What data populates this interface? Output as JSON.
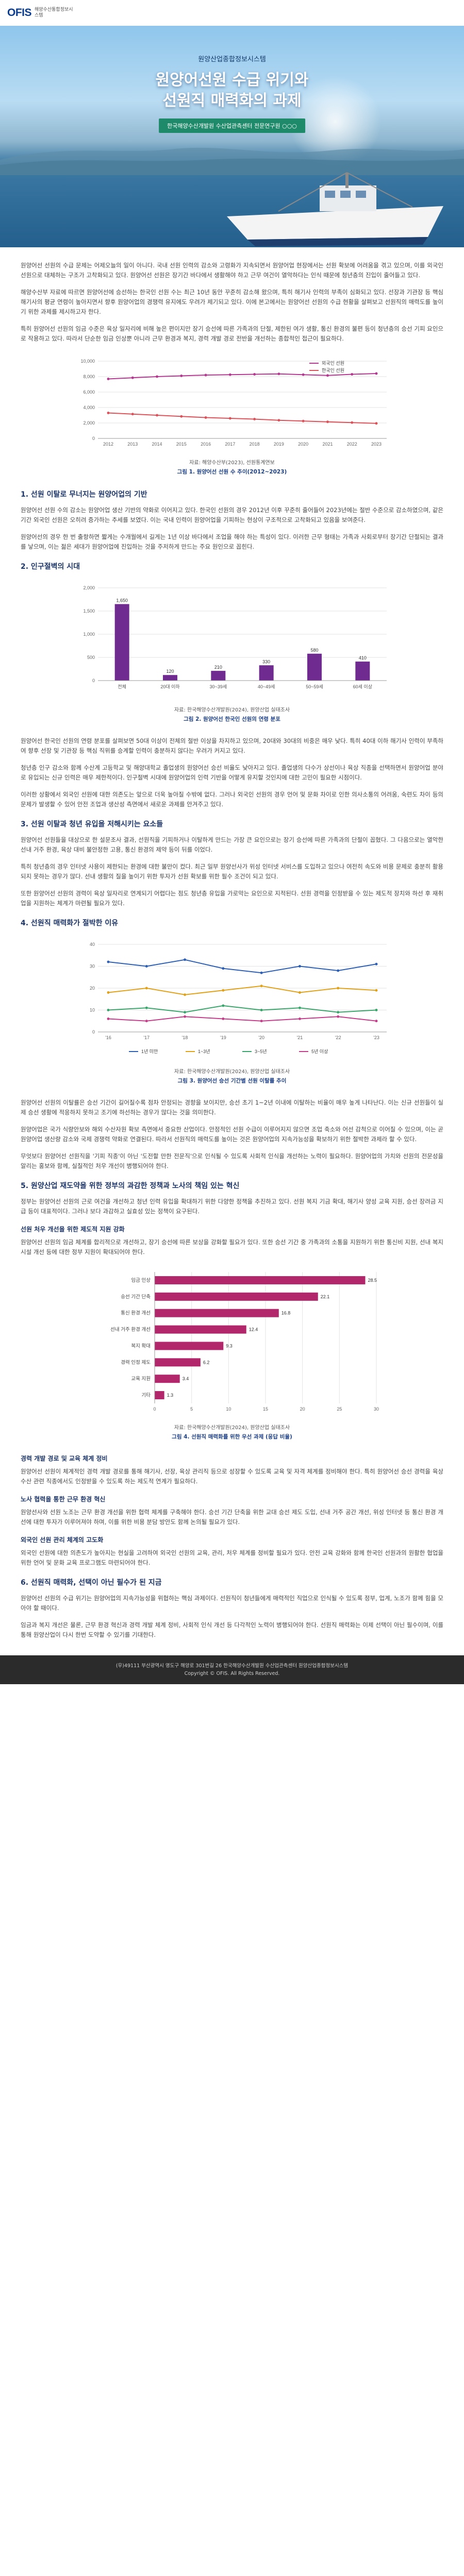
{
  "logo": {
    "mark": "OFIS",
    "subtitle": "해양수산통합정보시스템"
  },
  "hero": {
    "kicker": "원양산업종합정보시스템",
    "title_line1": "원양어선원 수급 위기와",
    "title_line2": "선원직 매력화의 과제",
    "author": "한국해양수산개발원 수산업관측센터 전문연구원 ○○○"
  },
  "intro_paragraphs": [
    "원양어선 선원의 수급 문제는 어제오늘의 일이 아니다. 국내 선원 인력의 감소와 고령화가 지속되면서 원양어업 현장에서는 선원 확보에 어려움을 겪고 있으며, 이를 외국인 선원으로 대체하는 구조가 고착화되고 있다. 원양어선 선원은 장기간 바다에서 생활해야 하고 근무 여건이 열악하다는 인식 때문에 청년층의 진입이 줄어들고 있다.",
    "해양수산부 자료에 따르면 원양어선에 승선하는 한국인 선원 수는 최근 10년 동안 꾸준히 감소해 왔으며, 특히 해기사 인력의 부족이 심화되고 있다. 선장과 기관장 등 핵심 해기사의 평균 연령이 높아지면서 향후 원양어업의 경쟁력 유지에도 우려가 제기되고 있다. 이에 본고에서는 원양어선 선원의 수급 현황을 살펴보고 선원직의 매력도를 높이기 위한 과제를 제시하고자 한다.",
    "특히 원양어선 선원의 임금 수준은 육상 일자리에 비해 높은 편이지만 장기 승선에 따른 가족과의 단절, 제한된 여가 생활, 통신 환경의 불편 등이 청년층의 승선 기피 요인으로 작용하고 있다. 따라서 단순한 임금 인상뿐 아니라 근무 환경과 복지, 경력 개발 경로 전반을 개선하는 종합적인 접근이 필요하다."
  ],
  "figure1": {
    "source": "자료: 해양수산부(2023), 선원통계연보",
    "caption": "그림 1. 원양어선 선원 수 추이(2012~2023)"
  },
  "section1": {
    "heading": "1. 선원 이탈로 무너지는 원양어업의 기반",
    "paragraphs": [
      "원양어선 선원 수의 감소는 원양어업 생산 기반의 약화로 이어지고 있다. 한국인 선원의 경우 2012년 이후 꾸준히 줄어들어 2023년에는 절반 수준으로 감소하였으며, 같은 기간 외국인 선원은 오히려 증가하는 추세를 보였다. 이는 국내 인력이 원양어업을 기피하는 현상이 구조적으로 고착화되고 있음을 보여준다.",
      "원양어선의 경우 한 번 출항하면 짧게는 수개월에서 길게는 1년 이상 바다에서 조업을 해야 하는 특성이 있다. 이러한 근무 형태는 가족과 사회로부터 장기간 단절되는 결과를 낳으며, 이는 젊은 세대가 원양어업에 진입하는 것을 주저하게 만드는 주요 원인으로 꼽힌다."
    ]
  },
  "section2": {
    "heading": "2. 인구절벽의 시대"
  },
  "figure2": {
    "source": "자료: 한국해양수산개발원(2024), 원양산업 실태조사",
    "caption": "그림 2. 원양어선 한국인 선원의 연령 분포"
  },
  "section2_paragraphs": [
    "원양어선 한국인 선원의 연령 분포를 살펴보면 50대 이상이 전체의 절반 이상을 차지하고 있으며, 20대와 30대의 비중은 매우 낮다. 특히 40대 이하 해기사 인력이 부족하여 향후 선장 및 기관장 등 핵심 직위를 승계할 인력이 충분하지 않다는 우려가 커지고 있다.",
    "청년층 인구 감소와 함께 수산계 고등학교 및 해양대학교 졸업생의 원양어선 승선 비율도 낮아지고 있다. 졸업생의 다수가 상선이나 육상 직종을 선택하면서 원양어업 분야로 유입되는 신규 인력은 매우 제한적이다. 인구절벽 시대에 원양어업의 인력 기반을 어떻게 유지할 것인지에 대한 고민이 필요한 시점이다.",
    "이러한 상황에서 외국인 선원에 대한 의존도는 앞으로 더욱 높아질 수밖에 없다. 그러나 외국인 선원의 경우 언어 및 문화 차이로 인한 의사소통의 어려움, 숙련도 차이 등의 문제가 발생할 수 있어 안전 조업과 생산성 측면에서 새로운 과제를 안겨주고 있다."
  ],
  "section3": {
    "heading": "3. 선원 이탈과 청년 유입을 저해시키는 요소들",
    "paragraphs": [
      "원양어선 선원들을 대상으로 한 설문조사 결과, 선원직을 기피하거나 이탈하게 만드는 가장 큰 요인으로는 장기 승선에 따른 가족과의 단절이 꼽혔다. 그 다음으로는 열악한 선내 거주 환경, 육상 대비 불안정한 고용, 통신 환경의 제약 등이 뒤를 이었다.",
      "특히 청년층의 경우 인터넷 사용이 제한되는 환경에 대한 불만이 컸다. 최근 일부 원양선사가 위성 인터넷 서비스를 도입하고 있으나 여전히 속도와 비용 문제로 충분히 활용되지 못하는 경우가 많다. 선내 생활의 질을 높이기 위한 투자가 선원 확보를 위한 필수 조건이 되고 있다.",
      "또한 원양어선 선원의 경력이 육상 일자리로 연계되기 어렵다는 점도 청년층 유입을 가로막는 요인으로 지적된다. 선원 경력을 인정받을 수 있는 제도적 장치와 하선 후 재취업을 지원하는 체계가 마련될 필요가 있다."
    ]
  },
  "section4": {
    "heading": "4. 선원직 매력화가 절박한 이유"
  },
  "figure3": {
    "source": "자료: 한국해양수산개발원(2024), 원양산업 실태조사",
    "caption": "그림 3. 원양어선 승선 기간별 선원 이탈률 추이"
  },
  "section4_paragraphs": [
    "원양어선 선원의 이탈률은 승선 기간이 길어질수록 점차 안정되는 경향을 보이지만, 승선 초기 1~2년 이내에 이탈하는 비율이 매우 높게 나타난다. 이는 신규 선원들이 실제 승선 생활에 적응하지 못하고 조기에 하선하는 경우가 많다는 것을 의미한다.",
    "원양어업은 국가 식량안보와 해외 수산자원 확보 측면에서 중요한 산업이다. 안정적인 선원 수급이 이루어지지 않으면 조업 축소와 어선 감척으로 이어질 수 있으며, 이는 곧 원양어업 생산량 감소와 국제 경쟁력 약화로 연결된다. 따라서 선원직의 매력도를 높이는 것은 원양어업의 지속가능성을 확보하기 위한 절박한 과제라 할 수 있다.",
    "무엇보다 원양어선 선원직을 '기피 직종'이 아닌 '도전할 만한 전문직'으로 인식될 수 있도록 사회적 인식을 개선하는 노력이 필요하다. 원양어업의 가치와 선원의 전문성을 알리는 홍보와 함께, 실질적인 처우 개선이 병행되어야 한다."
  ],
  "section5": {
    "heading": "5. 원양산업 재도약을 위한 정부의 과감한 정책과 노사의 책임 있는 혁신",
    "paragraphs": [
      "정부는 원양어선 선원의 근로 여건을 개선하고 청년 인력 유입을 확대하기 위한 다양한 정책을 추진하고 있다. 선원 복지 기금 확대, 해기사 양성 교육 지원, 승선 장려금 지급 등이 대표적이다. 그러나 보다 과감하고 실효성 있는 정책이 요구된다."
    ],
    "sub1_heading": "선원 처우 개선을 위한 제도적 지원 강화",
    "sub1_paragraph": "원양어선 선원의 임금 체계를 합리적으로 개선하고, 장기 승선에 따른 보상을 강화할 필요가 있다. 또한 승선 기간 중 가족과의 소통을 지원하기 위한 통신비 지원, 선내 복지 시설 개선 등에 대한 정부 지원이 확대되어야 한다."
  },
  "figure4": {
    "source": "자료: 한국해양수산개발원(2024), 원양산업 실태조사",
    "caption": "그림 4. 선원직 매력화를 위한 우선 과제 (응답 비율)"
  },
  "section5_more": {
    "sub2_heading": "경력 개발 경로 및 교육 체계 정비",
    "sub2_paragraph": "원양어선 선원이 체계적인 경력 개발 경로를 통해 해기사, 선장, 육상 관리직 등으로 성장할 수 있도록 교육 및 자격 체계를 정비해야 한다. 특히 원양어선 승선 경력을 육상 수산 관련 직종에서도 인정받을 수 있도록 하는 제도적 연계가 필요하다.",
    "sub3_heading": "노사 협력을 통한 근무 환경 혁신",
    "sub3_paragraph": "원양선사와 선원 노조는 근무 환경 개선을 위한 협력 체계를 구축해야 한다. 승선 기간 단축을 위한 교대 승선 제도 도입, 선내 거주 공간 개선, 위성 인터넷 등 통신 환경 개선에 대한 투자가 이루어져야 하며, 이를 위한 비용 분담 방안도 함께 논의될 필요가 있다.",
    "sub4_heading": "외국인 선원 관리 체계의 고도화",
    "sub4_paragraph": "외국인 선원에 대한 의존도가 높아지는 현실을 고려하여 외국인 선원의 교육, 관리, 처우 체계를 정비할 필요가 있다. 안전 교육 강화와 함께 한국인 선원과의 원활한 협업을 위한 언어 및 문화 교육 프로그램도 마련되어야 한다."
  },
  "section6": {
    "heading": "6. 선원직 매력화, 선택이 아닌 필수가 된 지금",
    "paragraphs": [
      "원양어선 선원의 수급 위기는 원양어업의 지속가능성을 위협하는 핵심 과제이다. 선원직이 청년들에게 매력적인 직업으로 인식될 수 있도록 정부, 업계, 노조가 함께 힘을 모아야 할 때이다.",
      "임금과 복지 개선은 물론, 근무 환경 혁신과 경력 개발 체계 정비, 사회적 인식 개선 등 다각적인 노력이 병행되어야 한다. 선원직 매력화는 이제 선택이 아닌 필수이며, 이를 통해 원양산업이 다시 한번 도약할 수 있기를 기대한다."
    ]
  },
  "footer": {
    "line1": "(우)49111 부산광역시 영도구 해양로 301번길 26 한국해양수산개발원 수산업관측센터 원양산업종합정보시스템",
    "line2": "Copyright © OFIS. All Rights Reserved."
  },
  "chart_data": [
    {
      "type": "line",
      "title": "",
      "x": [
        "2012",
        "2013",
        "2014",
        "2015",
        "2016",
        "2017",
        "2018",
        "2019",
        "2020",
        "2021",
        "2022",
        "2023"
      ],
      "ylim": [
        0,
        10000
      ],
      "series": [
        {
          "name": "외국인 선원",
          "color": "#b23a8f",
          "values": [
            7700,
            7850,
            8000,
            8100,
            8200,
            8250,
            8300,
            8350,
            8250,
            8150,
            8300,
            8400
          ]
        },
        {
          "name": "한국인 선원",
          "color": "#d9535a",
          "values": [
            3300,
            3150,
            3000,
            2850,
            2700,
            2600,
            2500,
            2350,
            2250,
            2150,
            2050,
            1950
          ]
        }
      ],
      "yticks": [
        0,
        2000,
        4000,
        6000,
        8000,
        10000
      ],
      "legend_position": "top-right",
      "grid": true
    },
    {
      "type": "bar",
      "title": "",
      "categories": [
        "전체",
        "20대 이하",
        "30~39세",
        "40~49세",
        "50~59세",
        "60세 이상"
      ],
      "values": [
        1650,
        120,
        210,
        330,
        580,
        410
      ],
      "ylim": [
        0,
        2000
      ],
      "yticks": [
        0,
        500,
        1000,
        1500,
        2000
      ],
      "color": "#6f2b8f",
      "grid": true
    },
    {
      "type": "line",
      "title": "",
      "x": [
        "'16",
        "'17",
        "'18",
        "'19",
        "'20",
        "'21",
        "'22",
        "'23"
      ],
      "ylim": [
        0,
        40
      ],
      "yticks": [
        0,
        10,
        20,
        30,
        40
      ],
      "series": [
        {
          "name": "1년 미만",
          "color": "#2f5fb3",
          "values": [
            32,
            30,
            33,
            29,
            27,
            30,
            28,
            31
          ]
        },
        {
          "name": "1~3년",
          "color": "#e0a11b",
          "values": [
            18,
            20,
            17,
            19,
            21,
            18,
            20,
            19
          ]
        },
        {
          "name": "3~5년",
          "color": "#3aa56b",
          "values": [
            10,
            11,
            9,
            12,
            10,
            11,
            9,
            10
          ]
        },
        {
          "name": "5년 이상",
          "color": "#c2408a",
          "values": [
            6,
            5,
            7,
            6,
            5,
            6,
            7,
            5
          ]
        }
      ],
      "legend_position": "bottom",
      "grid": true
    },
    {
      "type": "bar",
      "title": "",
      "categories": [
        "임금 인상",
        "승선 기간 단축",
        "통신 환경 개선",
        "선내 거주 환경 개선",
        "복지 확대",
        "경력 인정 제도",
        "교육 지원",
        "기타"
      ],
      "values": [
        28.5,
        22.1,
        16.8,
        12.4,
        9.3,
        6.2,
        3.4,
        1.3
      ],
      "xlim": [
        0,
        30
      ],
      "xticks": [
        0,
        5,
        10,
        15,
        20,
        25,
        30
      ],
      "orientation": "horizontal",
      "color": "#b2276b",
      "grid": true
    }
  ]
}
